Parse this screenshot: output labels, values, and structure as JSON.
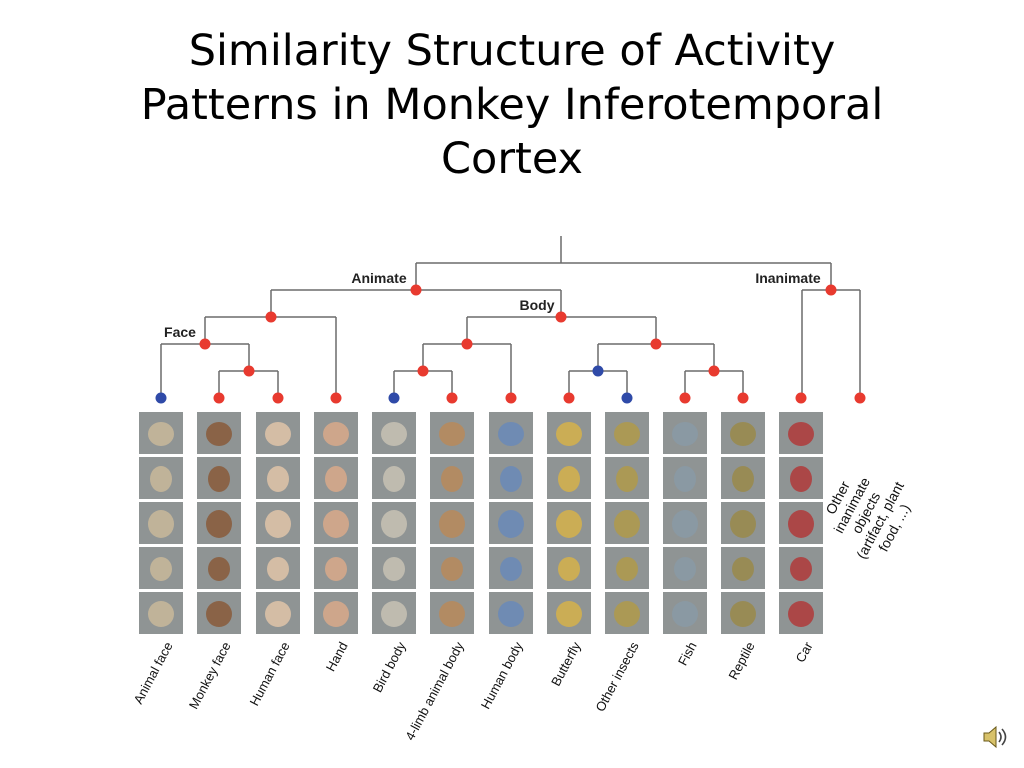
{
  "slide": {
    "title_lines": [
      "Similarity Structure of Activity",
      "Patterns in Monkey Inferotemporal",
      "Cortex"
    ]
  },
  "tree": {
    "labels": {
      "animate": "Animate",
      "inanimate": "Inanimate",
      "body": "Body",
      "face": "Face"
    },
    "categories": [
      "Animal face",
      "Monkey face",
      "Human face",
      "Hand",
      "Bird body",
      "4-limb animal body",
      "Human body",
      "Butterfly",
      "Other insects",
      "Fish",
      "Reptile",
      "Car"
    ],
    "leaf_colors": [
      "blue",
      "red",
      "red",
      "red",
      "blue",
      "red",
      "red",
      "red",
      "blue",
      "red",
      "red",
      "red",
      "red"
    ],
    "inanimate_note_lines": [
      "Other",
      "inanimate",
      "objects",
      "(artifact, plant",
      "food, ...)"
    ]
  },
  "colors": {
    "red": "#e83a2f",
    "blue": "#2f4aa8",
    "line": "#6b6b6b",
    "tile": "#8f9494"
  },
  "icons": {
    "speaker": "speaker-icon"
  }
}
